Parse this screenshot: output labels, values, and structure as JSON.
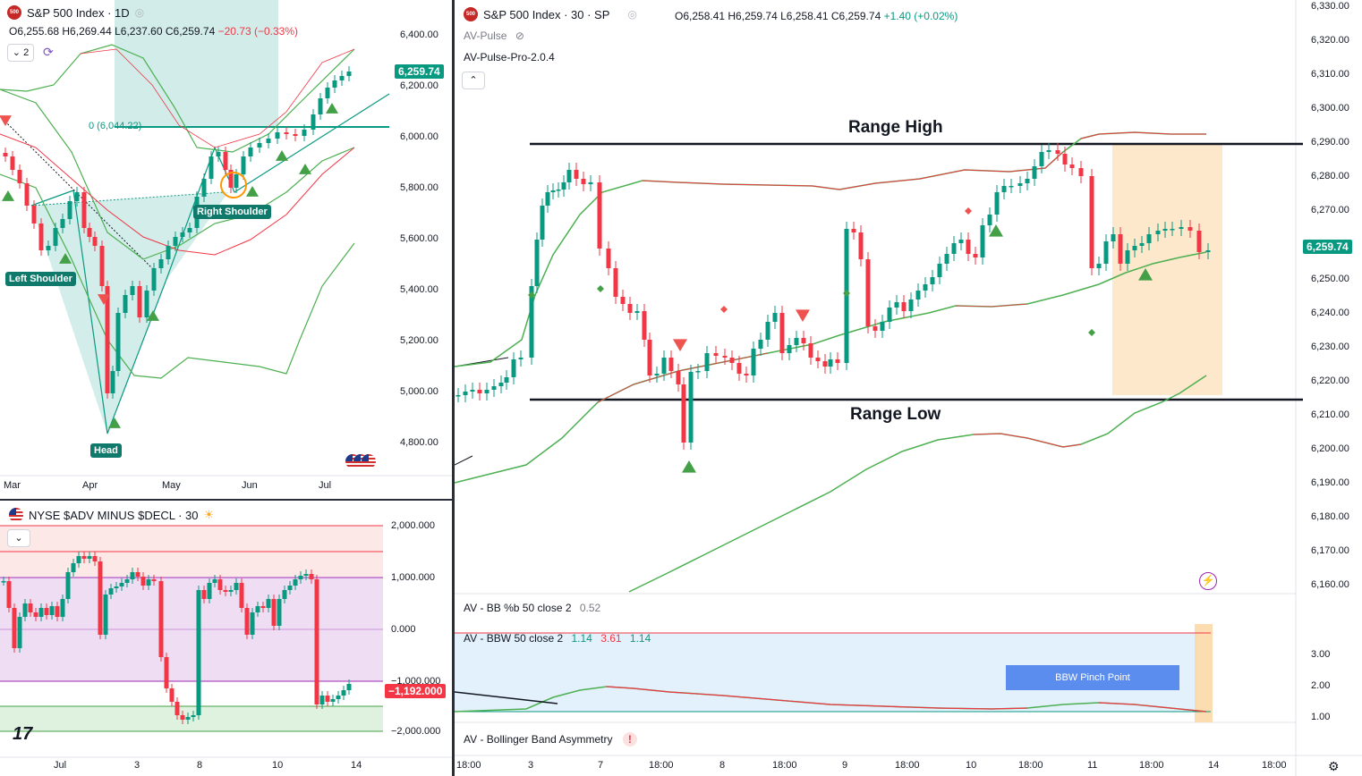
{
  "daily": {
    "title": "S&P 500 Index · 1D",
    "logo": "500",
    "ohlc": {
      "o": "O6,255.68",
      "h": "H6,269.44",
      "l": "L6,237.60",
      "c": "C6,259.74",
      "chg": "−20.73 (−0.33%)"
    },
    "interval_btn": "2",
    "price_axis": [
      "6,400.00",
      "6,200.00",
      "6,000.00",
      "5,800.00",
      "5,600.00",
      "5,400.00",
      "5,200.00",
      "5,000.00",
      "4,800.00"
    ],
    "last_price": "6,259.74",
    "time_axis": [
      "Mar",
      "Apr",
      "May",
      "Jun",
      "Jul"
    ],
    "fib_label": "0 (6,044.22)",
    "annotations": {
      "left_shoulder": "Left Shoulder",
      "head": "Head",
      "right_shoulder": "Right Shoulder"
    }
  },
  "adv": {
    "title": "NYSE $ADV MINUS $DECL · 30",
    "price_axis": [
      "2,000.000",
      "1,000.000",
      "0.000",
      "−1,000.000",
      "−2,000.000"
    ],
    "last_value": "−1,192.000",
    "time_axis": [
      "Jul",
      "3",
      "8",
      "10",
      "14"
    ],
    "logo_text": "17"
  },
  "main": {
    "title": "S&P 500 Index · 30 · SP",
    "logo": "500",
    "ohlc": {
      "o": "O6,258.41",
      "h": "H6,259.74",
      "l": "L6,258.41",
      "c": "C6,259.74",
      "chg": "+1.40 (+0.02%)"
    },
    "indicator1": "AV-Pulse",
    "indicator2": "AV-Pulse-Pro-2.0.4",
    "price_axis": [
      "6,330.00",
      "6,320.00",
      "6,310.00",
      "6,300.00",
      "6,290.00",
      "6,280.00",
      "6,270.00",
      "6,250.00",
      "6,240.00",
      "6,230.00",
      "6,220.00",
      "6,210.00",
      "6,200.00",
      "6,190.00",
      "6,180.00",
      "6,170.00",
      "6,160.00"
    ],
    "last_price": "6,259.74",
    "range_high": "Range High",
    "range_low": "Range Low",
    "bb_pct": {
      "label": "AV - BB %b 50 close 2",
      "value": "0.52"
    },
    "bbw": {
      "label": "AV - BBW 50 close 2",
      "v1": "1.14",
      "v2": "3.61",
      "v3": "1.14"
    },
    "bbw_axis": [
      "3.00",
      "2.00",
      "1.00"
    ],
    "pinch_label": "BBW Pinch Point",
    "asym_label": "AV - Bollinger Band Asymmetry",
    "asym_icon": "!",
    "time_axis": [
      "18:00",
      "3",
      "7",
      "18:00",
      "8",
      "18:00",
      "9",
      "18:00",
      "10",
      "18:00",
      "11",
      "18:00",
      "14",
      "18:00"
    ]
  },
  "colors": {
    "up": "#089981",
    "down": "#f23645",
    "band": "#4caf50",
    "bandRed": "#f23645",
    "accent": "#2962ff"
  }
}
